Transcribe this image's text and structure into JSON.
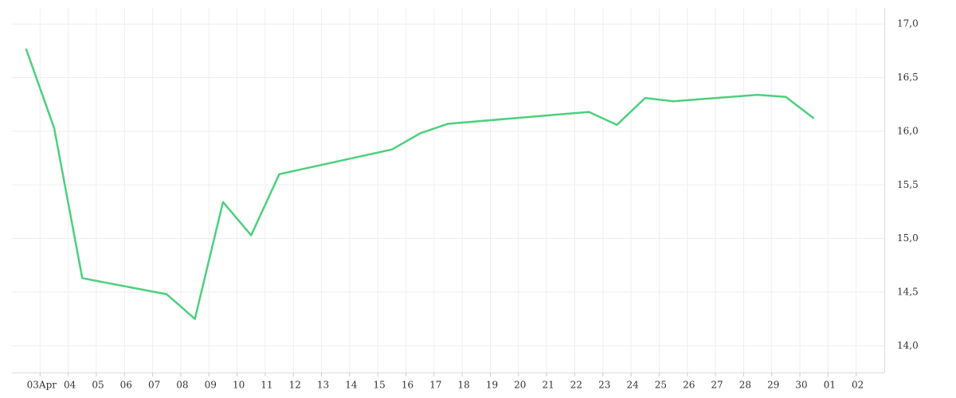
{
  "chart_data": {
    "type": "line",
    "x": [
      -0.5,
      0.5,
      1.5,
      4.5,
      5.5,
      6.5,
      7.5,
      8.5,
      12.5,
      13.5,
      14.5,
      19.5,
      20.5,
      21.5,
      22.5,
      25.5,
      26.5,
      27.5
    ],
    "values": [
      16.77,
      16.03,
      14.63,
      14.48,
      14.25,
      15.34,
      15.03,
      15.6,
      15.83,
      15.98,
      16.07,
      16.18,
      16.06,
      16.31,
      16.28,
      16.34,
      16.32,
      16.12
    ],
    "color": "#4cd07d",
    "xlim": [
      -1,
      30
    ],
    "xticks": [
      {
        "value": 0,
        "label": "03Apr"
      },
      {
        "value": 1,
        "label": "04"
      },
      {
        "value": 2,
        "label": "05"
      },
      {
        "value": 3,
        "label": "06"
      },
      {
        "value": 4,
        "label": "07"
      },
      {
        "value": 5,
        "label": "08"
      },
      {
        "value": 6,
        "label": "09"
      },
      {
        "value": 7,
        "label": "10"
      },
      {
        "value": 8,
        "label": "11"
      },
      {
        "value": 9,
        "label": "12"
      },
      {
        "value": 10,
        "label": "13"
      },
      {
        "value": 11,
        "label": "14"
      },
      {
        "value": 12,
        "label": "15"
      },
      {
        "value": 13,
        "label": "16"
      },
      {
        "value": 14,
        "label": "17"
      },
      {
        "value": 15,
        "label": "18"
      },
      {
        "value": 16,
        "label": "19"
      },
      {
        "value": 17,
        "label": "20"
      },
      {
        "value": 18,
        "label": "21"
      },
      {
        "value": 19,
        "label": "22"
      },
      {
        "value": 20,
        "label": "23"
      },
      {
        "value": 21,
        "label": "24"
      },
      {
        "value": 22,
        "label": "25"
      },
      {
        "value": 23,
        "label": "26"
      },
      {
        "value": 24,
        "label": "27"
      },
      {
        "value": 25,
        "label": "28"
      },
      {
        "value": 26,
        "label": "29"
      },
      {
        "value": 27,
        "label": "30"
      },
      {
        "value": 28,
        "label": "01"
      },
      {
        "value": 29,
        "label": "02"
      }
    ],
    "ylim": [
      13.75,
      17.15
    ],
    "yticks": [
      {
        "value": 14,
        "label": "14,0"
      },
      {
        "value": 14.5,
        "label": "14,5"
      },
      {
        "value": 15,
        "label": "15,0"
      },
      {
        "value": 15.5,
        "label": "15,5"
      },
      {
        "value": 16,
        "label": "16,0"
      },
      {
        "value": 16.5,
        "label": "16,5"
      },
      {
        "value": 17,
        "label": "17,0"
      }
    ],
    "grid": true
  }
}
